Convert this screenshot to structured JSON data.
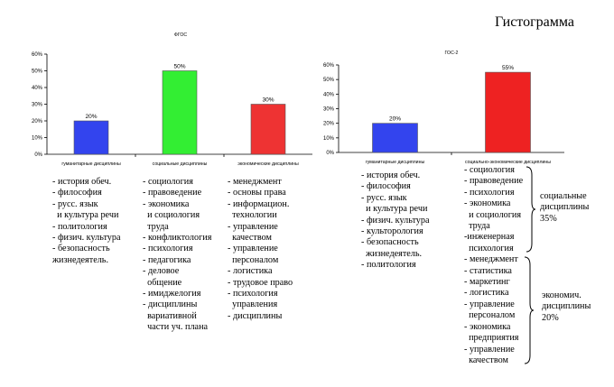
{
  "page_title": "Гистограмма",
  "chart_data": [
    {
      "type": "bar",
      "title": "ФГОС",
      "categories": [
        "гуманитарные дисциплины",
        "социальные дисциплины",
        "экономические дисциплины"
      ],
      "values": [
        20,
        50,
        30
      ],
      "value_labels": [
        "20%",
        "50%",
        "30%"
      ],
      "colors": [
        "#3344ee",
        "#33ee33",
        "#ee3333"
      ],
      "yticks": [
        "0%",
        "10%",
        "20%",
        "30%",
        "40%",
        "50%",
        "60%"
      ],
      "ylim": [
        0,
        60
      ],
      "xlabel": "",
      "ylabel": "",
      "grid": false,
      "legend": "none"
    },
    {
      "type": "bar",
      "title": "ГОС-2",
      "categories": [
        "гуманитарные дисциплины",
        "социально-экономические дисциплины"
      ],
      "values": [
        20,
        55
      ],
      "value_labels": [
        "20%",
        "55%"
      ],
      "colors": [
        "#3344ee",
        "#ee2222"
      ],
      "yticks": [
        "0%",
        "10%",
        "20%",
        "30%",
        "40%",
        "50%",
        "60%"
      ],
      "ylim": [
        0,
        60
      ],
      "xlabel": "",
      "ylabel": "",
      "grid": false,
      "legend": "none"
    }
  ],
  "lists": {
    "fgos_humanitarian": [
      "- история обеч.",
      "- философия",
      "- русс. язык",
      "  и культура речи",
      "- политология",
      "- физич. культура",
      "- безопасность",
      "жизнедеятель."
    ],
    "fgos_social": [
      "- социология",
      "- правоведение",
      "- экономика",
      "  и социология",
      "  труда",
      "- конфликтология",
      "- психология",
      "- педагогика",
      "- деловое",
      "  общение",
      "- имиджелогия",
      "- дисциплины",
      "  вариативной",
      "  части уч. плана"
    ],
    "fgos_economic": [
      "- менеджмент",
      "- основы права",
      "- информацион.",
      "  технологии",
      "- управление",
      "  качеством",
      "- управление",
      "  персоналом",
      "- логистика",
      "- трудовое право",
      "- психология",
      "  управления",
      "- дисциплины"
    ],
    "gos2_humanitarian": [
      "- история обеч.",
      "- философия",
      "- русс. язык",
      "  и культура речи",
      "- физич. культура",
      "- культорология",
      "- безопасность",
      "  жизнедеятель.",
      "- политология"
    ],
    "gos2_socioeconomic": [
      "- социология",
      "- правоведение",
      "- психология",
      "- экономика",
      "  и социология",
      "  труда",
      "-инженерная",
      "  психология",
      "- менеджмент",
      "- статистика",
      "- маркетинг",
      "- логистика",
      "- управление",
      "  персоналом",
      "- экономика",
      "  предприятия",
      "- управление",
      "  качеством"
    ]
  },
  "annotations": {
    "social": "социальные\nдисциплины\n35%",
    "economic": "экономич.\nдисциплины\n20%"
  }
}
